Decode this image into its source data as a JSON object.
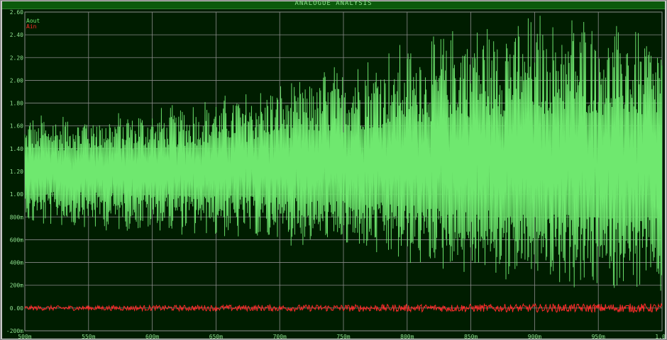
{
  "window": {
    "title": "ANALOGUE ANALYSIS"
  },
  "legend": [
    {
      "name": "Aout",
      "color": "#6fe86f"
    },
    {
      "name": "Ain",
      "color": "#ff2a2a"
    }
  ],
  "chart_data": {
    "type": "line",
    "title": "ANALOGUE ANALYSIS",
    "xlabel": "",
    "ylabel": "",
    "xlim": [
      500,
      1000
    ],
    "ylim": [
      -200,
      2600
    ],
    "x_ticks": [
      "500m",
      "550m",
      "600m",
      "650m",
      "700m",
      "750m",
      "800m",
      "850m",
      "900m",
      "950m",
      "1.00"
    ],
    "x_tick_values": [
      500,
      550,
      600,
      650,
      700,
      750,
      800,
      850,
      900,
      950,
      1000
    ],
    "y_ticks": [
      "2.60",
      "2.40",
      "2.20",
      "2.00",
      "1.80",
      "1.60",
      "1.40",
      "1.20",
      "1.00",
      "800m",
      "600m",
      "400m",
      "200m",
      "0.00",
      "-200m"
    ],
    "y_tick_values": [
      2600,
      2400,
      2200,
      2000,
      1800,
      1600,
      1400,
      1200,
      1000,
      800,
      600,
      400,
      200,
      0,
      -200
    ],
    "grid": true,
    "legend_position": "top-left",
    "series": [
      {
        "name": "Aout",
        "color": "#6fe86f",
        "x_units": "ms",
        "y_units": "mV",
        "center": 1200,
        "envelope_x": [
          500,
          600,
          700,
          800,
          850,
          900,
          950,
          1000
        ],
        "envelope_max": [
          1700,
          1750,
          2000,
          2350,
          2550,
          2600,
          2600,
          2400
        ],
        "envelope_min": [
          700,
          650,
          560,
          380,
          250,
          150,
          80,
          50
        ]
      },
      {
        "name": "Ain",
        "color": "#ff2a2a",
        "x_units": "ms",
        "y_units": "mV",
        "center": 0,
        "noise_amplitude": 20
      }
    ]
  }
}
